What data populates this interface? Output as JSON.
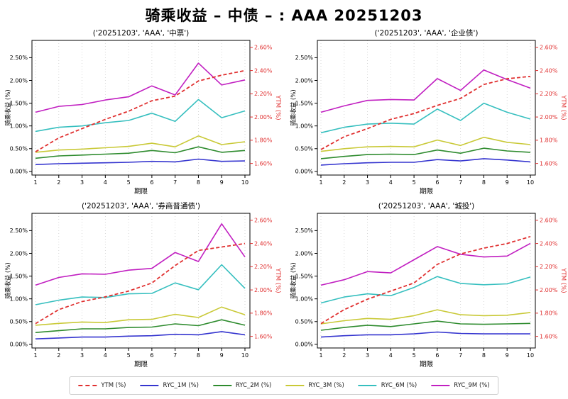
{
  "title": "骑乘收益 – 中债 – : AAA 20251203",
  "legend": [
    {
      "key": "YTM",
      "label": "YTM (%)",
      "color": "#e03030",
      "axis": "right",
      "dash": true
    },
    {
      "key": "RYC_1M",
      "label": "RYC_1M (%)",
      "color": "#3535cf",
      "axis": "left",
      "dash": false
    },
    {
      "key": "RYC_2M",
      "label": "RYC_2M (%)",
      "color": "#2e8b2e",
      "axis": "left",
      "dash": false
    },
    {
      "key": "RYC_3M",
      "label": "RYC_3M (%)",
      "color": "#c9c937",
      "axis": "left",
      "dash": false
    },
    {
      "key": "RYC_6M",
      "label": "RYC_6M (%)",
      "color": "#36bfbf",
      "axis": "left",
      "dash": false
    },
    {
      "key": "RYC_9M",
      "label": "RYC_9M (%)",
      "color": "#c11fc1",
      "axis": "left",
      "dash": false
    }
  ],
  "axes": {
    "x": {
      "label": "期限",
      "ticks": [
        1,
        2,
        3,
        4,
        5,
        6,
        7,
        8,
        9,
        10
      ],
      "grid": "vertical-dotted"
    },
    "left": {
      "label": "骑乘收益 (%)",
      "color": "#000000",
      "tick_values": [
        0,
        0.5,
        1,
        1.5,
        2,
        2.5
      ],
      "tick_labels": [
        "0.00%",
        "0.50%",
        "1.00%",
        "1.50%",
        "2.00%",
        "2.50%"
      ],
      "range": [
        -0.08,
        2.88
      ]
    },
    "right": {
      "label": "YTM (%)",
      "color": "#e03030",
      "tick_values": [
        1.6,
        1.8,
        2.0,
        2.2,
        2.4,
        2.6
      ],
      "tick_labels": [
        "1.60%",
        "1.80%",
        "2.00%",
        "2.20%",
        "2.40%",
        "2.60%"
      ],
      "range": [
        1.5,
        2.66
      ]
    }
  },
  "chart_data": [
    {
      "type": "line",
      "title": "('20251203', 'AAA', '中票')",
      "x": [
        1,
        2,
        3,
        4,
        5,
        6,
        7,
        8,
        9,
        10
      ],
      "series": {
        "YTM": [
          1.7,
          1.82,
          1.9,
          1.98,
          2.05,
          2.14,
          2.18,
          2.31,
          2.36,
          2.4
        ],
        "RYC_1M": [
          0.15,
          0.17,
          0.18,
          0.19,
          0.2,
          0.22,
          0.21,
          0.27,
          0.22,
          0.23
        ],
        "RYC_2M": [
          0.29,
          0.34,
          0.36,
          0.38,
          0.4,
          0.46,
          0.41,
          0.54,
          0.42,
          0.46
        ],
        "RYC_3M": [
          0.42,
          0.47,
          0.49,
          0.52,
          0.55,
          0.62,
          0.54,
          0.78,
          0.59,
          0.65
        ],
        "RYC_6M": [
          0.88,
          0.97,
          1.0,
          1.07,
          1.12,
          1.28,
          1.1,
          1.58,
          1.18,
          1.33
        ],
        "RYC_9M": [
          1.3,
          1.43,
          1.47,
          1.57,
          1.64,
          1.88,
          1.68,
          2.38,
          1.9,
          2.01
        ]
      }
    },
    {
      "type": "line",
      "title": "('20251203', 'AAA', '企业债')",
      "x": [
        1,
        2,
        3,
        4,
        5,
        6,
        7,
        8,
        9,
        10
      ],
      "series": {
        "YTM": [
          1.72,
          1.83,
          1.9,
          1.98,
          2.03,
          2.1,
          2.16,
          2.28,
          2.33,
          2.35
        ],
        "RYC_1M": [
          0.14,
          0.17,
          0.19,
          0.2,
          0.2,
          0.26,
          0.23,
          0.28,
          0.25,
          0.21
        ],
        "RYC_2M": [
          0.28,
          0.33,
          0.37,
          0.38,
          0.37,
          0.47,
          0.4,
          0.51,
          0.45,
          0.42
        ],
        "RYC_3M": [
          0.44,
          0.5,
          0.54,
          0.55,
          0.54,
          0.69,
          0.57,
          0.75,
          0.64,
          0.59
        ],
        "RYC_6M": [
          0.85,
          0.97,
          1.04,
          1.06,
          1.04,
          1.37,
          1.12,
          1.5,
          1.3,
          1.15
        ],
        "RYC_9M": [
          1.3,
          1.44,
          1.56,
          1.58,
          1.57,
          2.04,
          1.78,
          2.23,
          2.02,
          1.83
        ]
      }
    },
    {
      "type": "line",
      "title": "('20251203', 'AAA', '券商普通债')",
      "x": [
        1,
        2,
        3,
        4,
        5,
        6,
        7,
        8,
        9,
        10
      ],
      "series": {
        "YTM": [
          1.71,
          1.83,
          1.9,
          1.94,
          1.99,
          2.06,
          2.21,
          2.34,
          2.37,
          2.4
        ],
        "RYC_1M": [
          0.12,
          0.14,
          0.16,
          0.16,
          0.18,
          0.19,
          0.22,
          0.21,
          0.28,
          0.21
        ],
        "RYC_2M": [
          0.26,
          0.3,
          0.34,
          0.34,
          0.37,
          0.38,
          0.45,
          0.41,
          0.54,
          0.42
        ],
        "RYC_3M": [
          0.42,
          0.46,
          0.49,
          0.48,
          0.54,
          0.55,
          0.66,
          0.59,
          0.82,
          0.65
        ],
        "RYC_6M": [
          0.87,
          0.97,
          1.04,
          1.03,
          1.11,
          1.12,
          1.35,
          1.2,
          1.75,
          1.23
        ],
        "RYC_9M": [
          1.3,
          1.47,
          1.55,
          1.54,
          1.63,
          1.67,
          2.02,
          1.82,
          2.65,
          1.92
        ]
      }
    },
    {
      "type": "line",
      "title": "('20251203', 'AAA', '城投')",
      "x": [
        1,
        2,
        3,
        4,
        5,
        6,
        7,
        8,
        9,
        10
      ],
      "series": {
        "YTM": [
          1.71,
          1.83,
          1.92,
          1.99,
          2.06,
          2.22,
          2.31,
          2.36,
          2.4,
          2.46
        ],
        "RYC_1M": [
          0.16,
          0.19,
          0.21,
          0.21,
          0.23,
          0.27,
          0.24,
          0.23,
          0.23,
          0.23
        ],
        "RYC_2M": [
          0.31,
          0.37,
          0.42,
          0.39,
          0.45,
          0.51,
          0.45,
          0.44,
          0.45,
          0.46
        ],
        "RYC_3M": [
          0.45,
          0.52,
          0.57,
          0.55,
          0.63,
          0.76,
          0.65,
          0.63,
          0.64,
          0.7
        ],
        "RYC_6M": [
          0.91,
          1.04,
          1.11,
          1.07,
          1.25,
          1.49,
          1.34,
          1.31,
          1.33,
          1.48
        ],
        "RYC_9M": [
          1.3,
          1.42,
          1.6,
          1.57,
          1.86,
          2.15,
          1.98,
          1.92,
          1.94,
          2.22
        ]
      }
    }
  ]
}
